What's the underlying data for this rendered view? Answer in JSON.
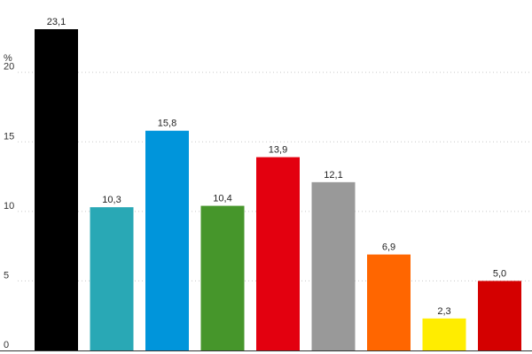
{
  "chart_data": {
    "type": "bar",
    "title": "",
    "xlabel": "",
    "ylabel": "%",
    "ylim": [
      0,
      23.1
    ],
    "y_ticks": [
      0,
      5,
      10,
      15,
      20
    ],
    "y_tick_labels": [
      "0",
      "5",
      "10",
      "15",
      "20"
    ],
    "grid": true,
    "categories": [
      "",
      "",
      "",
      "",
      "",
      "",
      "",
      "",
      ""
    ],
    "values": [
      23.1,
      10.3,
      15.8,
      10.4,
      13.9,
      12.1,
      6.9,
      2.3,
      5.0
    ],
    "value_labels": [
      "23,1",
      "10,3",
      "15,8",
      "10,4",
      "13,9",
      "12,1",
      "6,9",
      "2,3",
      "5,0"
    ],
    "colors": [
      "#000000",
      "#29a8b5",
      "#0095db",
      "#46962b",
      "#e3000f",
      "#999999",
      "#ff6600",
      "#ffed00",
      "#d40000"
    ]
  }
}
